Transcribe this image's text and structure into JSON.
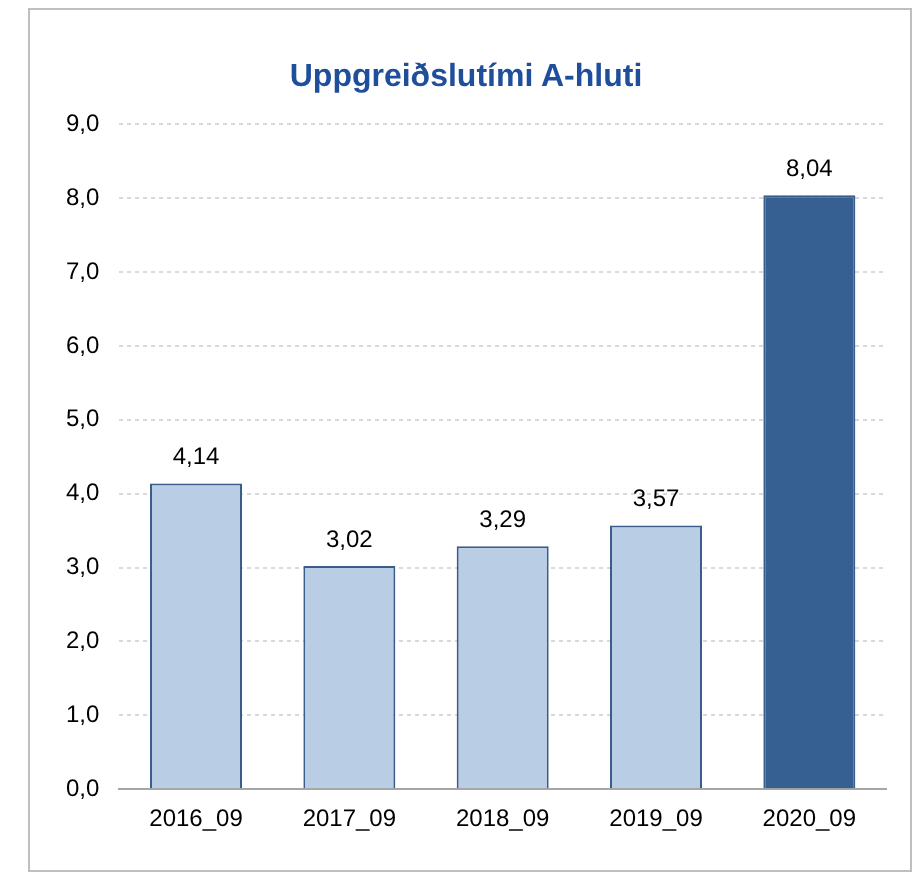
{
  "chart_data": {
    "type": "bar",
    "title": "Uppgreiðslutími A-hluti",
    "categories": [
      "2016_09",
      "2017_09",
      "2018_09",
      "2019_09",
      "2020_09"
    ],
    "values": [
      4.14,
      3.02,
      3.29,
      3.57,
      8.04
    ],
    "colors": [
      "#b9cde5",
      "#b9cde5",
      "#b9cde5",
      "#b9cde5",
      "#376092"
    ],
    "value_labels": [
      "4,14",
      "3,02",
      "3,29",
      "3,57",
      "8,04"
    ],
    "ylim": [
      0,
      9
    ],
    "yticks": [
      {
        "value": 0,
        "label": "0,0"
      },
      {
        "value": 1,
        "label": "1,0"
      },
      {
        "value": 2,
        "label": "2,0"
      },
      {
        "value": 3,
        "label": "3,0"
      },
      {
        "value": 4,
        "label": "4,0"
      },
      {
        "value": 5,
        "label": "5,0"
      },
      {
        "value": 6,
        "label": "6,0"
      },
      {
        "value": 7,
        "label": "7,0"
      },
      {
        "value": 8,
        "label": "8,0"
      },
      {
        "value": 9,
        "label": "9,0"
      }
    ],
    "grid": "y",
    "legend": false
  }
}
